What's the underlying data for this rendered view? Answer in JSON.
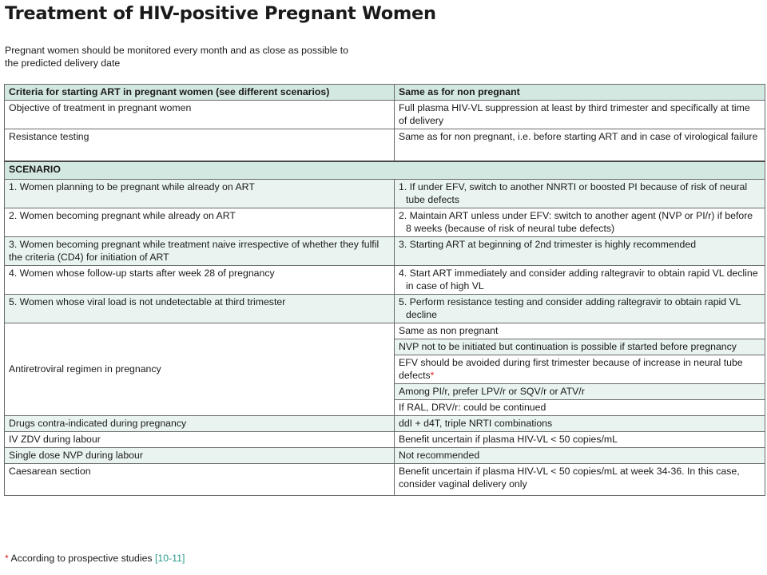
{
  "title": "Treatment of HIV-positive Pregnant Women",
  "intro": "Pregnant women should be monitored every month and as close as possible to the predicted delivery date",
  "header": {
    "left": "Criteria for starting ART in pregnant women (see different scenarios)",
    "right": "Same as for non pregnant"
  },
  "rows_top": [
    {
      "left": "Objective of treatment in pregnant women",
      "right": "Full plasma HIV-VL suppression at least by third trimester and specifically at time of delivery"
    },
    {
      "left": "Resistance testing",
      "right": "Same as for non pregnant, i.e. before starting ART and in case of virological failure"
    }
  ],
  "scenario_label": "SCENARIO",
  "scenarios": [
    {
      "left": "1. Women planning to be pregnant while already on ART",
      "right": "1. If under EFV, switch to another NNRTI or boosted PI because of risk of neural tube defects"
    },
    {
      "left": "2. Women becoming pregnant while already on ART",
      "right": "2. Maintain ART unless under EFV: switch to another agent (NVP or PI/r) if before 8 weeks (because of risk of neural tube defects)"
    },
    {
      "left": "3. Women becoming pregnant while treatment naive irrespective of whether they fulfil the criteria (CD4) for initiation of ART",
      "right": "3. Starting ART at beginning of 2nd trimester is highly recommended"
    },
    {
      "left": "4. Women whose follow-up starts after week 28 of pregnancy",
      "right": "4. Start ART immediately and consider adding raltegravir to obtain rapid VL decline in case of high VL"
    },
    {
      "left": "5. Women whose viral load is not undetectable at third trimester",
      "right": "5. Perform resistance testing and consider adding raltegravir to obtain rapid VL decline"
    }
  ],
  "regimen": {
    "label": "Antiretroviral regimen in pregnancy",
    "items": [
      "Same as non pregnant",
      "NVP not to be initiated but continuation is possible if started before pregnancy",
      "EFV should be avoided during first trimester because of increase in neural tube defects",
      "Among PI/r, prefer LPV/r or SQV/r or ATV/r",
      "If RAL, DRV/r: could be continued"
    ],
    "star": "*"
  },
  "rows_bottom": [
    {
      "left": "Drugs contra-indicated during pregnancy",
      "right": "ddI + d4T, triple NRTI combinations"
    },
    {
      "left": "IV ZDV during labour",
      "right": "Benefit uncertain if plasma HIV-VL < 50 copies/mL"
    },
    {
      "left": "Single dose NVP during labour",
      "right": "Not recommended"
    },
    {
      "left": "Caesarean section",
      "right": "Benefit uncertain if plasma HIV-VL < 50 copies/mL at week 34-36. In this case, consider vaginal delivery only"
    }
  ],
  "footnote": {
    "star": "*",
    "text": " According to prospective studies ",
    "ref": "[10-11]"
  },
  "colors": {
    "header_band": "#d4e8e2",
    "footnote_star": "#e02020",
    "reference": "#2a9a8a"
  }
}
